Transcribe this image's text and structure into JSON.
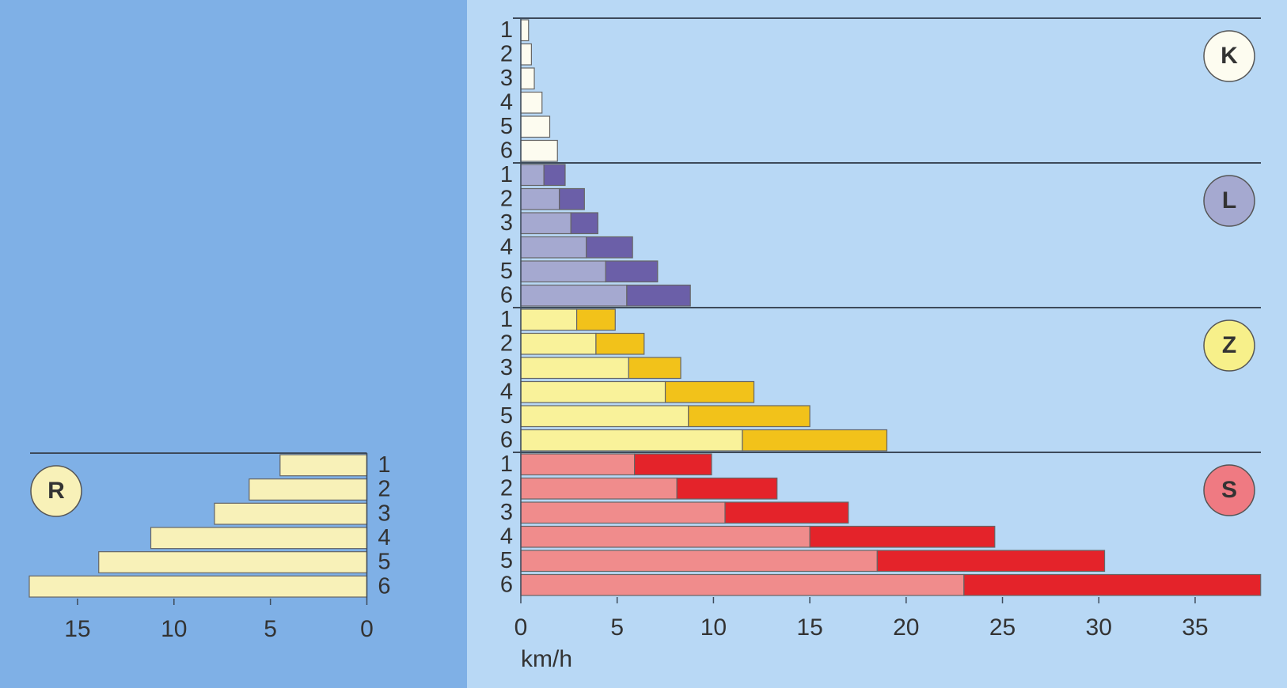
{
  "chart_data": [
    {
      "type": "bar",
      "orientation": "horizontal",
      "stacked": true,
      "x_reversed": true,
      "xlim": [
        0,
        17.5
      ],
      "xticks": [
        0,
        5,
        10,
        15
      ],
      "groups": [
        {
          "label": "R",
          "color": "#f8f1b8",
          "categories": [
            "1",
            "2",
            "3",
            "4",
            "5",
            "6"
          ],
          "series": [
            {
              "color": "#f8f1b8",
              "values": [
                4.5,
                6.1,
                7.9,
                11.2,
                13.9,
                17.5
              ]
            }
          ]
        }
      ]
    },
    {
      "type": "bar",
      "orientation": "horizontal",
      "stacked": true,
      "x_reversed": false,
      "xlim": [
        0,
        38.4
      ],
      "xticks": [
        0,
        5,
        10,
        15,
        20,
        25,
        30,
        35
      ],
      "xlabel": "km/h",
      "groups": [
        {
          "label": "K",
          "color": "#fdfcf0",
          "categories": [
            "1",
            "2",
            "3",
            "4",
            "5",
            "6"
          ],
          "series": [
            {
              "color": "#fdfcf0",
              "values": [
                0.4,
                0.55,
                0.7,
                1.1,
                1.5,
                1.9
              ]
            }
          ]
        },
        {
          "label": "L",
          "color": "#a5a9d0",
          "categories": [
            "1",
            "2",
            "3",
            "4",
            "5",
            "6"
          ],
          "series": [
            {
              "color": "#a5a9d0",
              "values": [
                1.2,
                2.0,
                2.6,
                3.4,
                4.4,
                5.5
              ]
            },
            {
              "color": "#6b5fa8",
              "values": [
                1.1,
                1.3,
                1.4,
                2.4,
                2.7,
                3.3
              ]
            }
          ]
        },
        {
          "label": "Z",
          "color": "#f7f08a",
          "categories": [
            "1",
            "2",
            "3",
            "4",
            "5",
            "6"
          ],
          "series": [
            {
              "color": "#f9f29a",
              "values": [
                2.9,
                3.9,
                5.6,
                7.5,
                8.7,
                11.5
              ]
            },
            {
              "color": "#f2c21a",
              "values": [
                2.0,
                2.5,
                2.7,
                4.6,
                6.3,
                7.5
              ]
            }
          ]
        },
        {
          "label": "S",
          "color": "#ef7a82",
          "categories": [
            "1",
            "2",
            "3",
            "4",
            "5",
            "6"
          ],
          "series": [
            {
              "color": "#f08c8c",
              "values": [
                5.9,
                8.1,
                10.6,
                15.0,
                18.5,
                23.0
              ]
            },
            {
              "color": "#e4232a",
              "values": [
                4.0,
                5.2,
                6.4,
                9.6,
                11.8,
                15.4
              ]
            }
          ]
        }
      ]
    }
  ]
}
